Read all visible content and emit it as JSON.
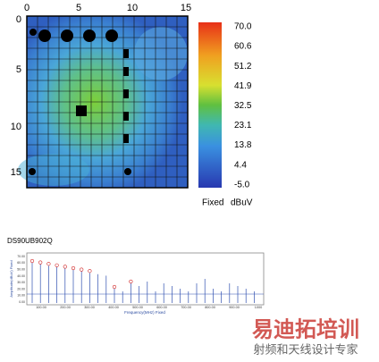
{
  "scan": {
    "x_axis": [
      "0",
      "5",
      "10",
      "15"
    ],
    "y_axis": [
      "0",
      "5",
      "10",
      "15"
    ],
    "colorbar": [
      "70.0",
      "60.6",
      "51.2",
      "41.9",
      "32.5",
      "23.1",
      "13.8",
      "4.4",
      "-5.0"
    ],
    "mode": "Fixed",
    "unit": "dBuV"
  },
  "spectrum": {
    "title": "DS90UB902Q",
    "y_label": "Amplitude(dBuV) Fixed",
    "x_label": "Frequency(MHz) Fixed",
    "y_axis": [
      "70.00",
      "60.00",
      "50.00",
      "40.00",
      "30.00",
      "20.00",
      "10.00",
      "0.00"
    ],
    "x_axis": [
      "100.00",
      "200.00",
      "300.00",
      "400.00",
      "500.00",
      "600.00",
      "700.00",
      "800.00",
      "900.00",
      "1000"
    ]
  },
  "watermark": {
    "brand": "易迪拓培训",
    "slogan": "射频和天线设计专家"
  }
}
